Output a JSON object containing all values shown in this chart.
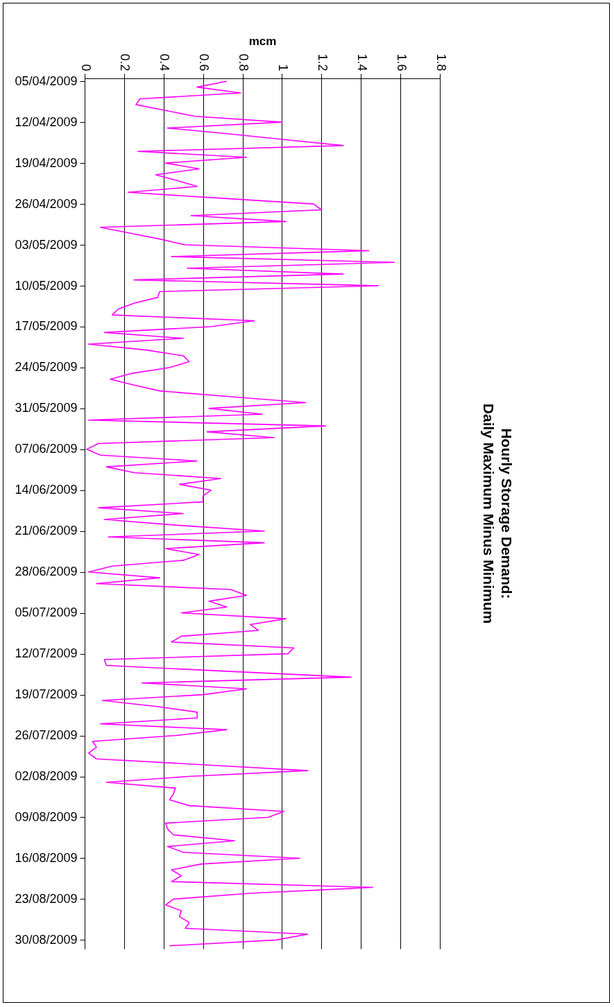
{
  "chart_data": {
    "type": "line",
    "orientation": "horizontal",
    "title": "Hourly Storage Demand:\nDaily Maximum Minus Minimum",
    "xlabel": "mcm",
    "categories": [
      "05/04/2009",
      null,
      null,
      null,
      null,
      null,
      null,
      "12/04/2009",
      null,
      null,
      null,
      null,
      null,
      null,
      "19/04/2009",
      null,
      null,
      null,
      null,
      null,
      null,
      "26/04/2009",
      null,
      null,
      null,
      null,
      null,
      null,
      "03/05/2009",
      null,
      null,
      null,
      null,
      null,
      null,
      "10/05/2009",
      null,
      null,
      null,
      null,
      null,
      null,
      "17/05/2009",
      null,
      null,
      null,
      null,
      null,
      null,
      "24/05/2009",
      null,
      null,
      null,
      null,
      null,
      null,
      "31/05/2009",
      null,
      null,
      null,
      null,
      null,
      null,
      "07/06/2009",
      null,
      null,
      null,
      null,
      null,
      null,
      "14/06/2009",
      null,
      null,
      null,
      null,
      null,
      null,
      "21/06/2009",
      null,
      null,
      null,
      null,
      null,
      null,
      "28/06/2009",
      null,
      null,
      null,
      null,
      null,
      null,
      "05/07/2009",
      null,
      null,
      null,
      null,
      null,
      null,
      "12/07/2009",
      null,
      null,
      null,
      null,
      null,
      null,
      "19/07/2009",
      null,
      null,
      null,
      null,
      null,
      null,
      "26/07/2009",
      null,
      null,
      null,
      null,
      null,
      null,
      "02/08/2009",
      null,
      null,
      null,
      null,
      null,
      null,
      "09/08/2009",
      null,
      null,
      null,
      null,
      null,
      null,
      "16/08/2009",
      null,
      null,
      null,
      null,
      null,
      null,
      "23/08/2009",
      null,
      null,
      null,
      null,
      null,
      null,
      "30/08/2009",
      null
    ],
    "series": [
      {
        "color": "#ff00ff",
        "values": [
          0.72,
          0.57,
          0.79,
          0.28,
          0.26,
          0.41,
          0.56,
          1.0,
          0.42,
          0.73,
          1.02,
          1.31,
          0.27,
          0.82,
          0.41,
          0.58,
          0.36,
          0.47,
          0.57,
          0.22,
          0.68,
          1.16,
          1.2,
          0.54,
          1.02,
          0.08,
          0.23,
          0.38,
          0.51,
          1.44,
          0.44,
          1.57,
          0.52,
          1.31,
          0.25,
          1.49,
          0.38,
          0.37,
          0.25,
          0.17,
          0.14,
          0.86,
          0.64,
          0.1,
          0.5,
          0.02,
          0.31,
          0.5,
          0.53,
          0.43,
          0.24,
          0.13,
          0.25,
          0.38,
          0.74,
          1.12,
          0.63,
          0.9,
          0.02,
          1.22,
          0.62,
          0.96,
          0.07,
          0.01,
          0.08,
          0.57,
          0.11,
          0.25,
          0.69,
          0.48,
          0.64,
          0.6,
          0.6,
          0.07,
          0.5,
          0.1,
          0.47,
          0.91,
          0.12,
          0.91,
          0.41,
          0.58,
          0.5,
          0.14,
          0.02,
          0.38,
          0.06,
          0.74,
          0.82,
          0.63,
          0.72,
          0.49,
          1.02,
          0.84,
          0.88,
          0.49,
          0.44,
          1.06,
          1.03,
          0.1,
          0.11,
          0.72,
          1.35,
          0.29,
          0.82,
          0.6,
          0.09,
          0.36,
          0.57,
          0.57,
          0.08,
          0.72,
          0.46,
          0.04,
          0.06,
          0.02,
          0.06,
          0.6,
          1.13,
          0.53,
          0.11,
          0.46,
          0.45,
          0.43,
          0.53,
          1.01,
          0.93,
          0.41,
          0.42,
          0.45,
          0.76,
          0.42,
          0.5,
          1.09,
          0.59,
          0.44,
          0.49,
          0.44,
          1.46,
          0.84,
          0.45,
          0.41,
          0.49,
          0.48,
          0.53,
          0.51,
          1.13,
          0.97,
          0.43
        ]
      }
    ],
    "xlim": [
      0,
      1.8
    ],
    "xticks": [
      0,
      0.2,
      0.4,
      0.6,
      0.8,
      1,
      1.2,
      1.4,
      1.6,
      1.8
    ],
    "grid": "x",
    "legend": false,
    "marker": "none",
    "line_style": "solid"
  }
}
